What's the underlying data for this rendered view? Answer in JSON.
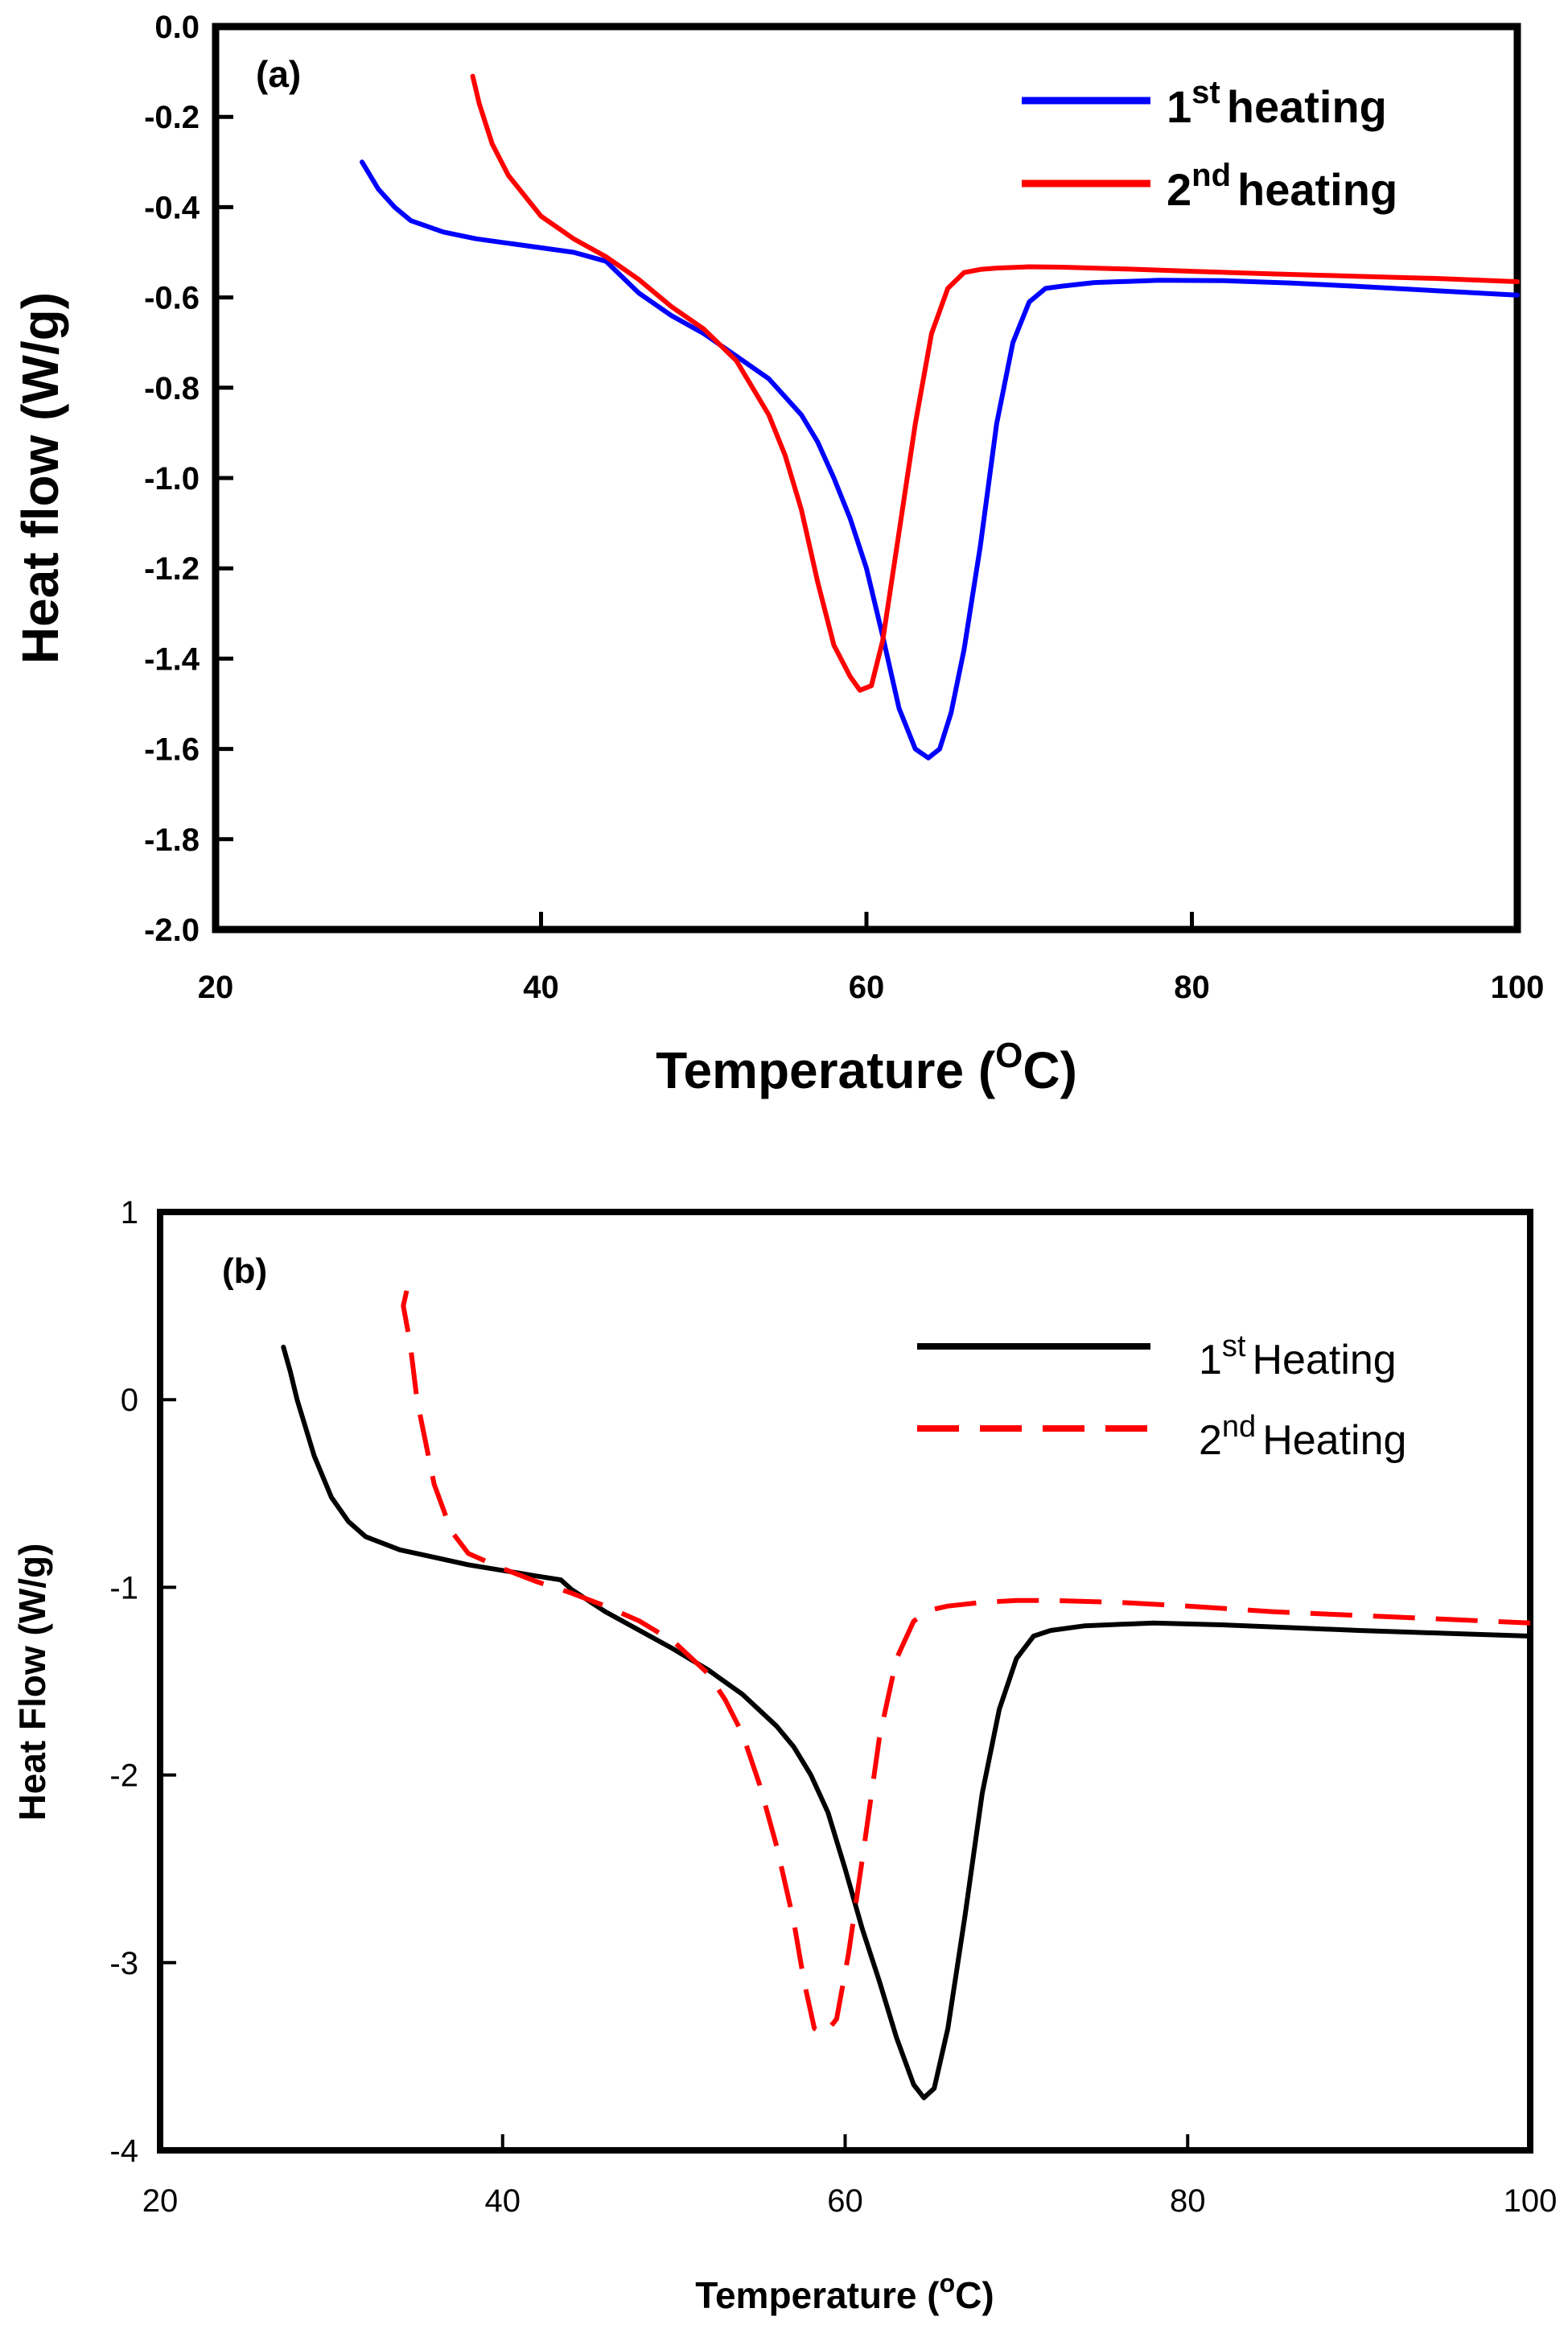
{
  "chart_data": [
    {
      "type": "line",
      "panel_label": "(a)",
      "title": "",
      "xlabel": {
        "main": "Temperature (",
        "sup": "O",
        "tail": "C)"
      },
      "ylabel": "Heat flow (W/g)",
      "xlim": [
        20,
        100
      ],
      "ylim": [
        -2.0,
        0.0
      ],
      "xticks": [
        20,
        40,
        60,
        80,
        100
      ],
      "xtick_labels": [
        "20",
        "40",
        "60",
        "80",
        "100"
      ],
      "yticks": [
        0.0,
        -0.2,
        -0.4,
        -0.6,
        -0.8,
        -1.0,
        -1.2,
        -1.4,
        -1.6,
        -1.8,
        -2.0
      ],
      "ytick_labels": [
        "0.0",
        "-0.2",
        "-0.4",
        "-0.6",
        "-0.8",
        "-1.0",
        "-1.2",
        "-1.4",
        "-1.6",
        "-1.8",
        "-2.0"
      ],
      "grid": false,
      "legend_position": "top-right",
      "series": [
        {
          "name": "1st heating",
          "legend": {
            "num": "1",
            "sup": "st",
            "text": "heating"
          },
          "color": "#0000ff",
          "dash": "solid",
          "x": [
            29.0,
            30.0,
            31.0,
            32.0,
            34.0,
            36.0,
            38.0,
            40.0,
            42.0,
            44.0,
            46.0,
            48.0,
            50.0,
            52.0,
            54.0,
            56.0,
            57.0,
            58.0,
            59.0,
            60.0,
            61.0,
            62.0,
            63.0,
            63.8,
            64.5,
            65.2,
            66.0,
            67.0,
            68.0,
            69.0,
            70.0,
            71.0,
            72.0,
            74.0,
            78.0,
            82.0,
            86.0,
            90.0,
            95.0,
            100.0
          ],
          "y": [
            -0.3,
            -0.36,
            -0.4,
            -0.43,
            -0.455,
            -0.47,
            -0.48,
            -0.49,
            -0.5,
            -0.52,
            -0.59,
            -0.64,
            -0.68,
            -0.73,
            -0.78,
            -0.86,
            -0.92,
            -1.0,
            -1.09,
            -1.2,
            -1.35,
            -1.51,
            -1.6,
            -1.62,
            -1.6,
            -1.52,
            -1.38,
            -1.15,
            -0.88,
            -0.7,
            -0.61,
            -0.58,
            -0.575,
            -0.567,
            -0.562,
            -0.563,
            -0.568,
            -0.575,
            -0.585,
            -0.595
          ]
        },
        {
          "name": "2nd heating",
          "legend": {
            "num": "2",
            "sup": "nd",
            "text": "heating"
          },
          "color": "#ff0000",
          "dash": "solid",
          "x": [
            35.8,
            36.2,
            37.0,
            38.0,
            40.0,
            42.0,
            44.0,
            46.0,
            48.0,
            50.0,
            52.0,
            54.0,
            55.0,
            56.0,
            57.0,
            58.0,
            59.0,
            59.6,
            60.3,
            61.0,
            62.0,
            63.0,
            64.0,
            65.0,
            66.0,
            67.0,
            68.0,
            70.0,
            72.0,
            76.0,
            80.0,
            85.0,
            90.0,
            95.0,
            100.0
          ],
          "y": [
            -0.11,
            -0.17,
            -0.26,
            -0.33,
            -0.42,
            -0.47,
            -0.51,
            -0.56,
            -0.62,
            -0.67,
            -0.74,
            -0.86,
            -0.95,
            -1.07,
            -1.23,
            -1.37,
            -1.44,
            -1.47,
            -1.46,
            -1.36,
            -1.12,
            -0.88,
            -0.68,
            -0.58,
            -0.545,
            -0.538,
            -0.535,
            -0.532,
            -0.533,
            -0.537,
            -0.542,
            -0.548,
            -0.553,
            -0.558,
            -0.565
          ]
        }
      ]
    },
    {
      "type": "line",
      "panel_label": "(b)",
      "title": "",
      "xlabel": {
        "main": "Temperature (",
        "sup": "o",
        "tail": "C)"
      },
      "ylabel": "Heat Flow (W/g)",
      "xlim": [
        20,
        100
      ],
      "ylim": [
        -4,
        1
      ],
      "xticks": [
        20,
        40,
        60,
        80,
        100
      ],
      "xtick_labels": [
        "20",
        "40",
        "60",
        "80",
        "100"
      ],
      "yticks": [
        1,
        0,
        -1,
        -2,
        -3,
        -4
      ],
      "ytick_labels": [
        "1",
        "0",
        "-1",
        "-2",
        "-3",
        "-4"
      ],
      "grid": false,
      "legend_position": "top-right",
      "series": [
        {
          "name": "1st Heating",
          "legend": {
            "num": "1",
            "sup": "st",
            "text": "Heating"
          },
          "color": "#000000",
          "dash": "solid",
          "x": [
            27.2,
            27.6,
            28.0,
            29.0,
            30.0,
            31.0,
            32.0,
            34.0,
            36.0,
            38.0,
            40.0,
            42.0,
            43.4,
            44.0,
            46.0,
            48.0,
            50.0,
            52.0,
            54.0,
            56.0,
            57.0,
            58.0,
            59.0,
            60.0,
            61.0,
            62.0,
            63.0,
            64.0,
            64.6,
            65.2,
            66.0,
            67.0,
            68.0,
            69.0,
            70.0,
            71.0,
            72.0,
            74.0,
            78.0,
            82.0,
            86.0,
            90.0,
            95.0,
            100.0
          ],
          "y": [
            0.28,
            0.15,
            0.0,
            -0.3,
            -0.52,
            -0.65,
            -0.73,
            -0.8,
            -0.84,
            -0.88,
            -0.91,
            -0.94,
            -0.96,
            -1.01,
            -1.13,
            -1.23,
            -1.33,
            -1.44,
            -1.57,
            -1.74,
            -1.85,
            -2.0,
            -2.2,
            -2.5,
            -2.82,
            -3.1,
            -3.4,
            -3.65,
            -3.72,
            -3.67,
            -3.35,
            -2.75,
            -2.1,
            -1.65,
            -1.38,
            -1.26,
            -1.23,
            -1.205,
            -1.19,
            -1.2,
            -1.215,
            -1.23,
            -1.245,
            -1.26
          ]
        },
        {
          "name": "2nd Heating",
          "legend": {
            "num": "2",
            "sup": "nd",
            "text": "Heating"
          },
          "color": "#ff0000",
          "dash": "dashed",
          "x": [
            34.4,
            34.2,
            34.6,
            35.0,
            36.0,
            37.0,
            38.0,
            40.0,
            42.0,
            44.0,
            46.0,
            48.0,
            50.0,
            52.0,
            53.0,
            54.0,
            55.0,
            56.0,
            57.0,
            57.6,
            58.2,
            58.8,
            59.5,
            60.2,
            61.0,
            62.0,
            63.0,
            64.0,
            65.0,
            66.0,
            68.0,
            70.0,
            72.0,
            76.0,
            80.0,
            85.0,
            90.0,
            95.0,
            100.0
          ],
          "y": [
            0.58,
            0.5,
            0.3,
            0.0,
            -0.45,
            -0.7,
            -0.82,
            -0.9,
            -0.97,
            -1.03,
            -1.1,
            -1.18,
            -1.29,
            -1.46,
            -1.6,
            -1.78,
            -2.05,
            -2.38,
            -2.78,
            -3.1,
            -3.35,
            -3.38,
            -3.3,
            -2.95,
            -2.45,
            -1.8,
            -1.38,
            -1.18,
            -1.12,
            -1.1,
            -1.08,
            -1.07,
            -1.07,
            -1.08,
            -1.1,
            -1.13,
            -1.15,
            -1.17,
            -1.19
          ]
        }
      ]
    }
  ]
}
